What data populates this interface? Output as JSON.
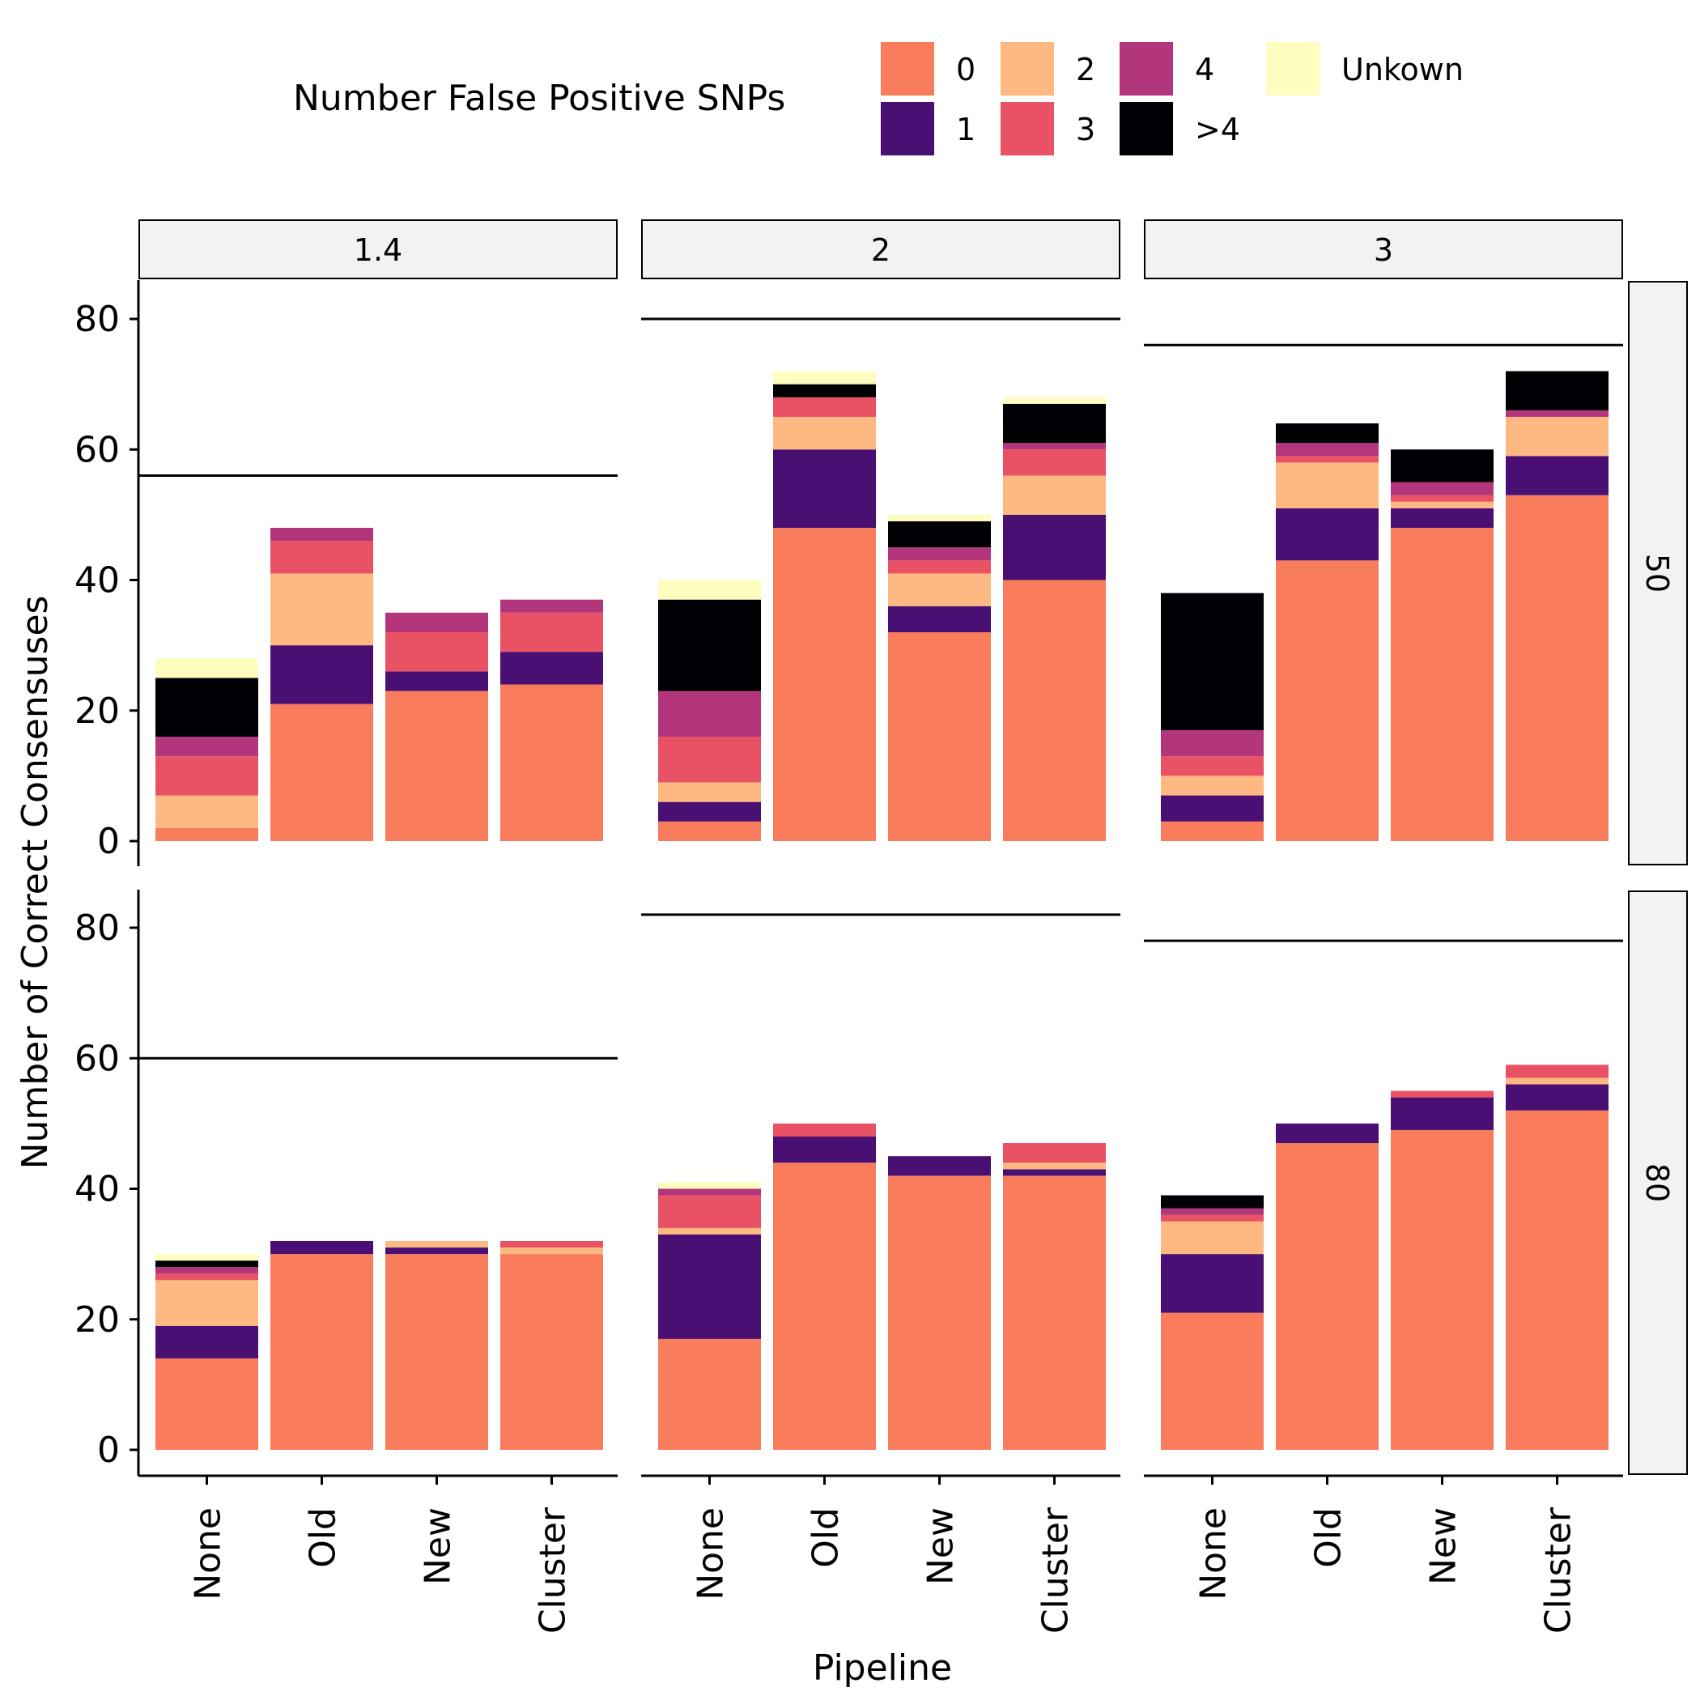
{
  "chart_data": {
    "type": "bar",
    "stacked": true,
    "xlabel": "Pipeline",
    "ylabel": "Number of Correct Consensuses",
    "ylim": [
      0,
      86
    ],
    "yticks": [
      0,
      20,
      40,
      60,
      80
    ],
    "categories": [
      "None",
      "Old",
      "New",
      "Cluster"
    ],
    "legend": {
      "title": "Number False Positive SNPs",
      "position": "top",
      "entries": [
        {
          "label": "0",
          "color": "#F97C5D"
        },
        {
          "label": "1",
          "color": "#4A0F72"
        },
        {
          "label": "2",
          "color": "#FDB981"
        },
        {
          "label": "3",
          "color": "#E85264"
        },
        {
          "label": "4",
          "color": "#B3357B"
        },
        {
          "label": ">4",
          "color": "#000004"
        },
        {
          "label": "Unkown",
          "color": "#FCFDBF"
        }
      ]
    },
    "col_facets": [
      "1.4",
      "2",
      "3"
    ],
    "row_facets": [
      "50",
      "80"
    ],
    "panels": [
      {
        "col": "1.4",
        "row": "50",
        "reference_line": 56,
        "stacks": [
          [
            2,
            0,
            5,
            6,
            3,
            9,
            3
          ],
          [
            21,
            9,
            11,
            5,
            2,
            0,
            0
          ],
          [
            23,
            3,
            0,
            6,
            3,
            0,
            0
          ],
          [
            24,
            5,
            0,
            6,
            2,
            0,
            0
          ]
        ]
      },
      {
        "col": "2",
        "row": "50",
        "reference_line": 80,
        "stacks": [
          [
            3,
            3,
            3,
            7,
            7,
            14,
            3
          ],
          [
            48,
            12,
            5,
            3,
            0,
            2,
            2
          ],
          [
            32,
            4,
            5,
            2,
            2,
            4,
            1
          ],
          [
            40,
            10,
            6,
            4,
            1,
            6,
            1
          ]
        ]
      },
      {
        "col": "3",
        "row": "50",
        "reference_line": 76,
        "stacks": [
          [
            3,
            4,
            3,
            3,
            4,
            21,
            0
          ],
          [
            43,
            8,
            7,
            1,
            2,
            3,
            0
          ],
          [
            48,
            3,
            1,
            1,
            2,
            5,
            0
          ],
          [
            53,
            6,
            6,
            0,
            1,
            6,
            0
          ]
        ]
      },
      {
        "col": "1.4",
        "row": "80",
        "reference_line": 60,
        "stacks": [
          [
            14,
            5,
            7,
            1,
            1,
            1,
            1
          ],
          [
            30,
            2,
            0,
            0,
            0,
            0,
            0
          ],
          [
            30,
            1,
            1,
            0,
            0,
            0,
            0
          ],
          [
            30,
            0,
            1,
            1,
            0,
            0,
            0
          ]
        ]
      },
      {
        "col": "2",
        "row": "80",
        "reference_line": 82,
        "stacks": [
          [
            17,
            16,
            1,
            5,
            1,
            0,
            1
          ],
          [
            44,
            4,
            0,
            2,
            0,
            0,
            0
          ],
          [
            42,
            3,
            0,
            0,
            0,
            0,
            0
          ],
          [
            42,
            1,
            1,
            3,
            0,
            0,
            0
          ]
        ]
      },
      {
        "col": "3",
        "row": "80",
        "reference_line": 78,
        "stacks": [
          [
            21,
            9,
            5,
            1,
            1,
            2,
            0
          ],
          [
            47,
            3,
            0,
            0,
            0,
            0,
            0
          ],
          [
            49,
            5,
            0,
            1,
            0,
            0,
            0
          ],
          [
            52,
            4,
            1,
            2,
            0,
            0,
            0
          ]
        ]
      }
    ]
  }
}
